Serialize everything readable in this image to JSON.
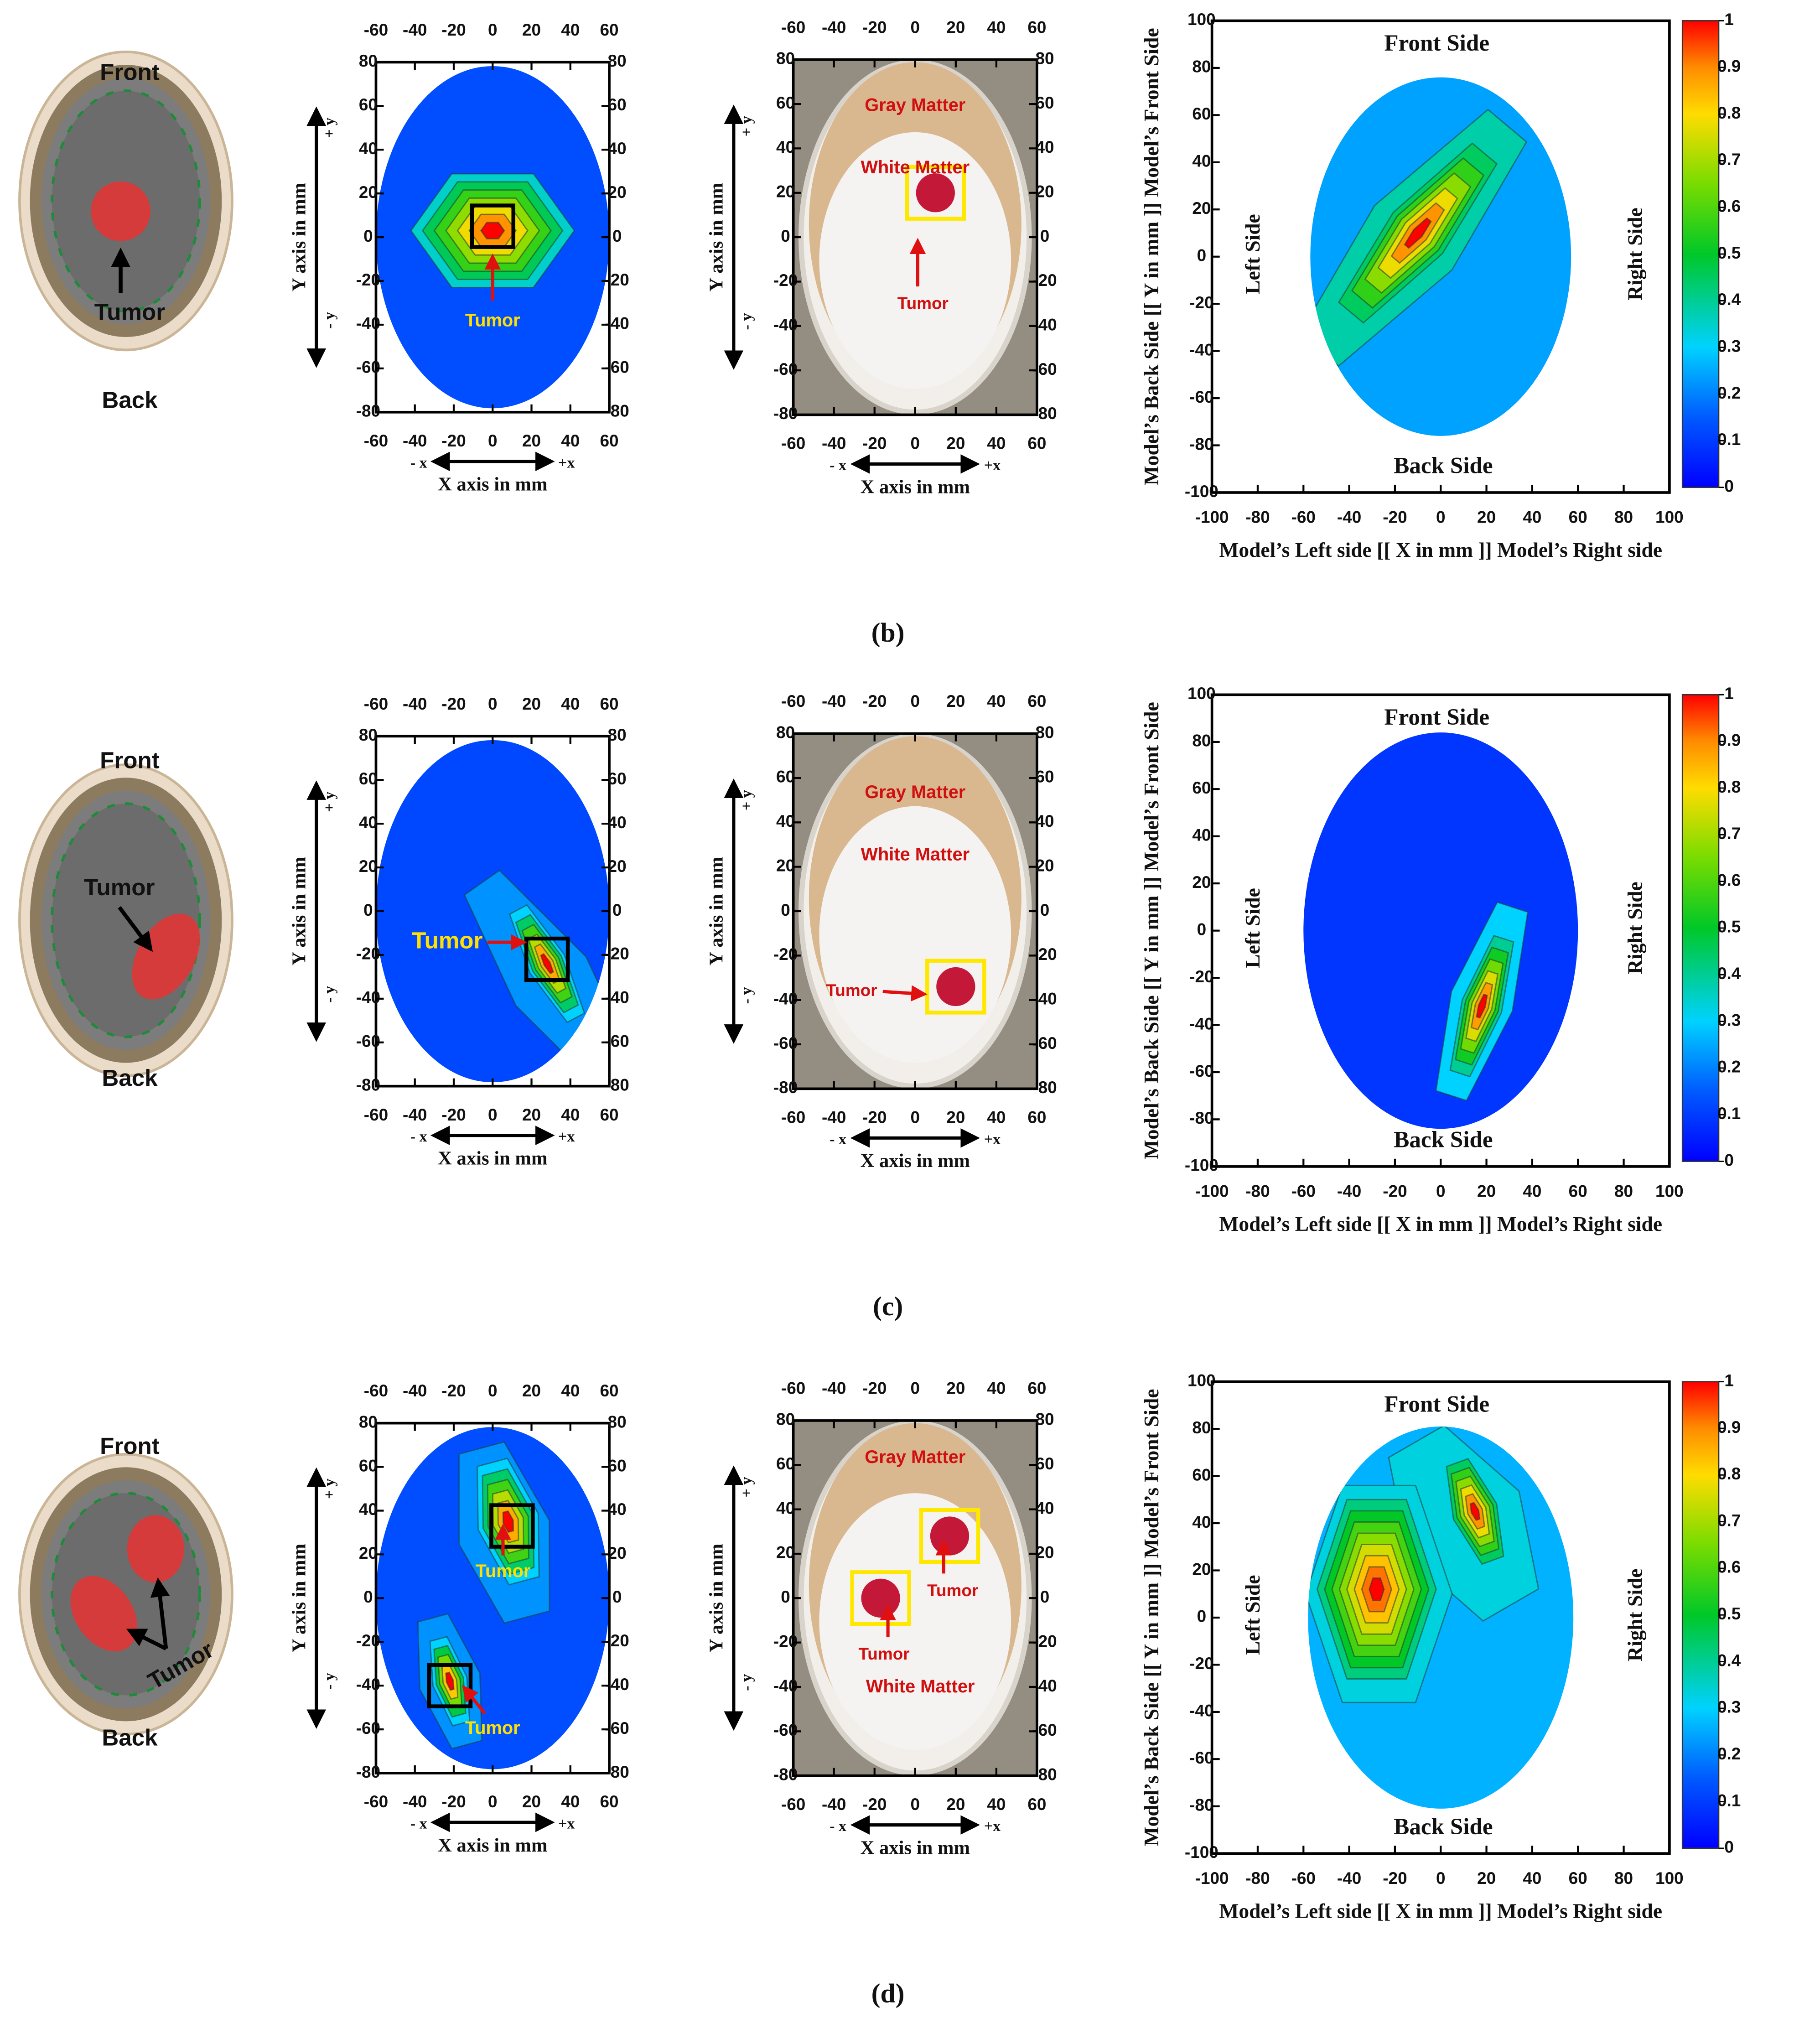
{
  "figure": {
    "common": {
      "front": "Front",
      "back": "Back",
      "small_xlim": [
        -60,
        60
      ],
      "small_ylim": [
        -80,
        80
      ],
      "small_x_ticks": [
        -60,
        -40,
        -20,
        0,
        20,
        40,
        60
      ],
      "small_y_ticks": [
        80,
        60,
        40,
        20,
        0,
        -20,
        -40,
        -60,
        -80
      ],
      "x_axis_label": "X axis in mm",
      "y_axis_label": "Y axis in mm",
      "minus_x": "- x",
      "plus_x": "+x",
      "plus_y": "+ y",
      "minus_y": "- y",
      "gray_matter": "Gray Matter",
      "white_matter": "White Matter",
      "big_lim": [
        -100,
        100
      ],
      "big_ticks": [
        -100,
        -80,
        -60,
        -40,
        -20,
        0,
        20,
        40,
        60,
        80,
        100
      ],
      "big_x_label": "Model’s Left side [[ X in mm ]] Model’s Right side",
      "big_y_label": "Model’s Back Side [[ Y in mm ]] Model’s Front Side",
      "front_side": "Front Side",
      "back_side": "Back Side",
      "left_side": "Left Side",
      "right_side": "Right Side",
      "colorbar_lim": [
        0,
        1
      ],
      "colorbar_ticks": [
        0,
        0.1,
        0.2,
        0.3,
        0.4,
        0.5,
        0.6,
        0.7,
        0.8,
        0.9,
        1
      ]
    },
    "panels": [
      {
        "label": "(b)",
        "schematic_tumor": "Tumor",
        "sim_tumor_labels": [
          "Tumor"
        ],
        "photo_tumor_labels": [
          "Tumor"
        ]
      },
      {
        "label": "(c)",
        "schematic_tumor": "Tumor",
        "sim_tumor_labels": [
          "Tumor"
        ],
        "photo_tumor_labels": [
          "Tumor"
        ]
      },
      {
        "label": "(d)",
        "schematic_tumor": "Tumor",
        "sim_tumor_labels": [
          "Tumor",
          "Tumor"
        ],
        "photo_tumor_labels": [
          "Tumor",
          "Tumor"
        ]
      }
    ]
  }
}
